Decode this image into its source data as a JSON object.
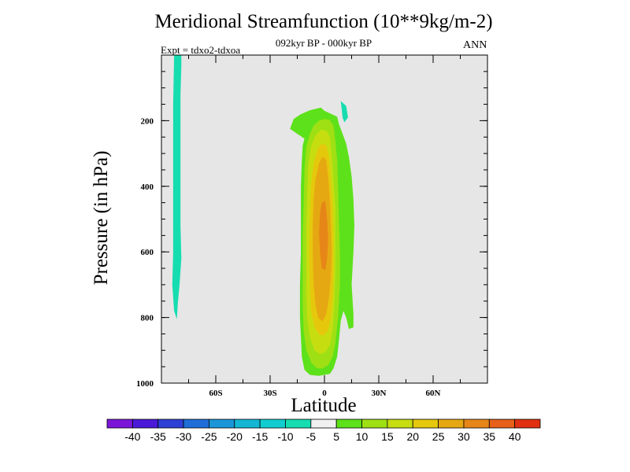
{
  "chart_data": {
    "type": "contour",
    "title": "Meridional Streamfunction (10**9kg/m-2)",
    "subtitle": "092kyr BP - 000kyr BP",
    "left_annotation": "Expt = tdxo2-tdxoa",
    "right_annotation": "ANN",
    "xlabel": "Latitude",
    "ylabel": "Pressure (in hPa)",
    "xlim": [
      -90,
      90
    ],
    "ylim": [
      1000,
      0
    ],
    "x_ticks": [
      {
        "value": -60,
        "label": "60S"
      },
      {
        "value": -30,
        "label": "30S"
      },
      {
        "value": 0,
        "label": "0"
      },
      {
        "value": 30,
        "label": "30N"
      },
      {
        "value": 60,
        "label": "60N"
      }
    ],
    "y_ticks": [
      {
        "value": 200,
        "label": "200"
      },
      {
        "value": 400,
        "label": "400"
      },
      {
        "value": 600,
        "label": "600"
      },
      {
        "value": 800,
        "label": "800"
      },
      {
        "value": 1000,
        "label": "1000"
      }
    ],
    "background_color": "#e6e6e6",
    "colorbar": {
      "labels": [
        "-40",
        "-35",
        "-30",
        "-25",
        "-20",
        "-15",
        "-10",
        "-5",
        "5",
        "10",
        "15",
        "20",
        "25",
        "30",
        "35",
        "40"
      ],
      "colors": [
        "#7b16d9",
        "#4b1ad8",
        "#2e3fd6",
        "#1f6ed8",
        "#1a95d8",
        "#14b6d4",
        "#12cdd0",
        "#16ddb0",
        "#f0f0f0",
        "#5de11a",
        "#9ee014",
        "#c6de10",
        "#e5c80c",
        "#e6a812",
        "#e68618",
        "#e6601a",
        "#e03010"
      ]
    },
    "regions": [
      {
        "level": "-10",
        "color": "#16ddb0",
        "polygon": [
          [
            -83,
            0
          ],
          [
            -79,
            0
          ],
          [
            -79,
            30
          ],
          [
            -79.5,
            120
          ],
          [
            -79.5,
            240
          ],
          [
            -79.5,
            400
          ],
          [
            -79.5,
            520
          ],
          [
            -79,
            620
          ],
          [
            -80,
            700
          ],
          [
            -81,
            760
          ],
          [
            -81.5,
            805
          ],
          [
            -83,
            780
          ],
          [
            -84,
            700
          ],
          [
            -83.5,
            600
          ],
          [
            -83.5,
            450
          ],
          [
            -83.5,
            300
          ],
          [
            -83.5,
            150
          ]
        ]
      },
      {
        "level": "-10",
        "color": "#16ddb0",
        "polygon": [
          [
            9,
            140
          ],
          [
            12,
            155
          ],
          [
            13,
            190
          ],
          [
            11,
            205
          ],
          [
            10,
            190
          ],
          [
            9.5,
            165
          ]
        ]
      },
      {
        "level": "5",
        "color": "#5de11a",
        "polygon": [
          [
            -19,
            225
          ],
          [
            -17,
            195
          ],
          [
            -13,
            180
          ],
          [
            -8,
            168
          ],
          [
            -2,
            160
          ],
          [
            0,
            170
          ],
          [
            4,
            180
          ],
          [
            7,
            188
          ],
          [
            8,
            210
          ],
          [
            10,
            240
          ],
          [
            12,
            270
          ],
          [
            13.5,
            310
          ],
          [
            15,
            370
          ],
          [
            16,
            440
          ],
          [
            16.5,
            520
          ],
          [
            16,
            600
          ],
          [
            15,
            700
          ],
          [
            16,
            790
          ],
          [
            16,
            830
          ],
          [
            13.5,
            835
          ],
          [
            12,
            800
          ],
          [
            10.5,
            780
          ],
          [
            9,
            810
          ],
          [
            8,
            870
          ],
          [
            7,
            920
          ],
          [
            5,
            955
          ],
          [
            3,
            972
          ],
          [
            -3,
            978
          ],
          [
            -8,
            975
          ],
          [
            -11,
            960
          ],
          [
            -12.5,
            920
          ],
          [
            -13,
            860
          ],
          [
            -13.5,
            800
          ],
          [
            -13.5,
            700
          ],
          [
            -13,
            600
          ],
          [
            -13,
            500
          ],
          [
            -13,
            400
          ],
          [
            -12.5,
            320
          ],
          [
            -12,
            275
          ],
          [
            -11,
            255
          ],
          [
            -15,
            240
          ]
        ]
      },
      {
        "level": "10",
        "color": "#9ee014",
        "polygon": [
          [
            -6,
            215
          ],
          [
            -3,
            200
          ],
          [
            0,
            195
          ],
          [
            3,
            198
          ],
          [
            5,
            215
          ],
          [
            6,
            260
          ],
          [
            7,
            320
          ],
          [
            7.5,
            400
          ],
          [
            8,
            500
          ],
          [
            8.5,
            600
          ],
          [
            8.5,
            700
          ],
          [
            7.5,
            800
          ],
          [
            6,
            880
          ],
          [
            4.5,
            920
          ],
          [
            2,
            945
          ],
          [
            -1,
            955
          ],
          [
            -4,
            955
          ],
          [
            -7,
            940
          ],
          [
            -10,
            900
          ],
          [
            -11.5,
            840
          ],
          [
            -12,
            760
          ],
          [
            -12,
            650
          ],
          [
            -12,
            550
          ],
          [
            -11.5,
            450
          ],
          [
            -11,
            350
          ],
          [
            -10,
            280
          ],
          [
            -8,
            240
          ]
        ]
      },
      {
        "level": "15",
        "color": "#c6de10",
        "polygon": [
          [
            -5,
            245
          ],
          [
            -2,
            228
          ],
          [
            1,
            230
          ],
          [
            3,
            250
          ],
          [
            4,
            300
          ],
          [
            5,
            380
          ],
          [
            6,
            460
          ],
          [
            6,
            560
          ],
          [
            6,
            660
          ],
          [
            5.5,
            760
          ],
          [
            4.5,
            840
          ],
          [
            3,
            885
          ],
          [
            0.5,
            905
          ],
          [
            -2.5,
            912
          ],
          [
            -5.5,
            900
          ],
          [
            -8,
            860
          ],
          [
            -9.5,
            800
          ],
          [
            -10,
            720
          ],
          [
            -10,
            620
          ],
          [
            -10,
            520
          ],
          [
            -9.5,
            420
          ],
          [
            -9,
            340
          ],
          [
            -7.5,
            280
          ]
        ]
      },
      {
        "level": "20",
        "color": "#e5c80c",
        "polygon": [
          [
            -4,
            290
          ],
          [
            -1.5,
            270
          ],
          [
            1,
            275
          ],
          [
            2.5,
            310
          ],
          [
            3.5,
            380
          ],
          [
            4.5,
            460
          ],
          [
            5,
            560
          ],
          [
            5,
            660
          ],
          [
            4.5,
            740
          ],
          [
            3.5,
            800
          ],
          [
            2,
            840
          ],
          [
            -0.5,
            855
          ],
          [
            -3,
            852
          ],
          [
            -5.5,
            830
          ],
          [
            -7.5,
            780
          ],
          [
            -8,
            700
          ],
          [
            -8.5,
            600
          ],
          [
            -8,
            500
          ],
          [
            -7.5,
            400
          ],
          [
            -6,
            330
          ]
        ]
      },
      {
        "level": "25",
        "color": "#e6a812",
        "polygon": [
          [
            -3,
            330
          ],
          [
            -1,
            310
          ],
          [
            1,
            320
          ],
          [
            2,
            370
          ],
          [
            3,
            440
          ],
          [
            3.5,
            520
          ],
          [
            4,
            600
          ],
          [
            3.5,
            680
          ],
          [
            2.5,
            740
          ],
          [
            1,
            790
          ],
          [
            -1,
            812
          ],
          [
            -3.5,
            800
          ],
          [
            -5,
            760
          ],
          [
            -6,
            700
          ],
          [
            -6.5,
            600
          ],
          [
            -6.5,
            520
          ],
          [
            -6,
            440
          ],
          [
            -5,
            380
          ]
        ]
      },
      {
        "level": "30",
        "color": "#e68618",
        "polygon": [
          [
            -1.5,
            450
          ],
          [
            0.5,
            445
          ],
          [
            1.5,
            500
          ],
          [
            2,
            560
          ],
          [
            1.5,
            620
          ],
          [
            0.5,
            655
          ],
          [
            -1.5,
            650
          ],
          [
            -2.5,
            600
          ],
          [
            -3,
            540
          ],
          [
            -2.5,
            480
          ]
        ]
      }
    ]
  }
}
